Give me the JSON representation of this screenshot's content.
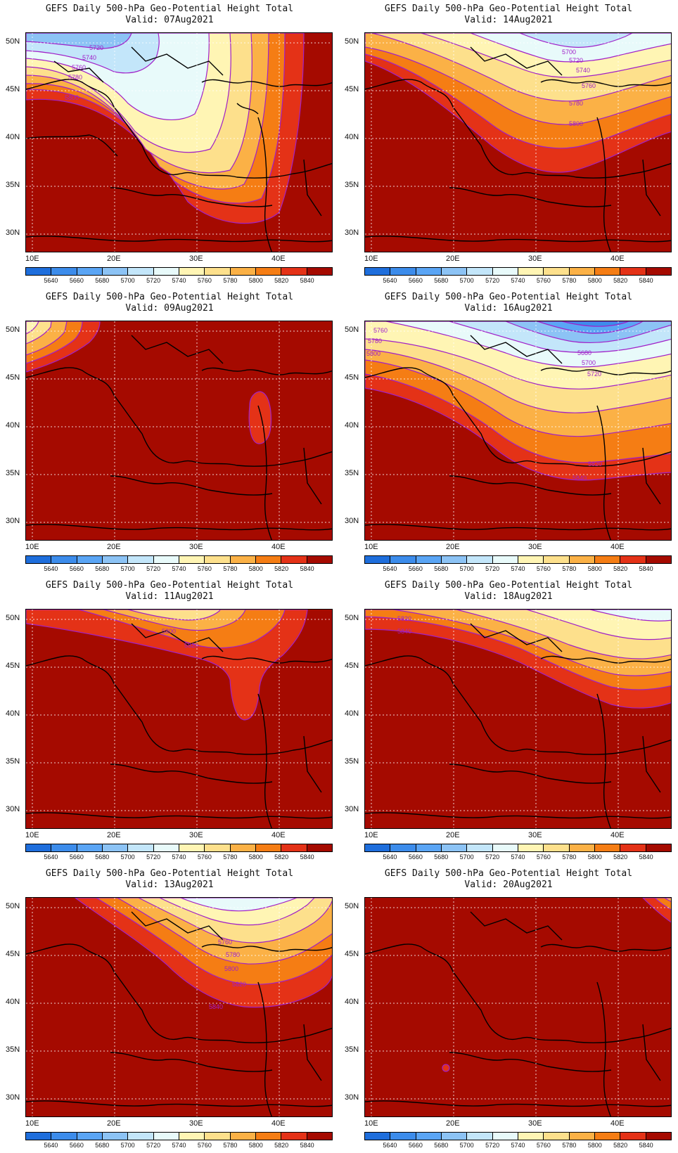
{
  "figure_title": "GEFS Daily 500-hPa Geo-Potential Height Total",
  "legend": {
    "levels": [
      "5640",
      "5660",
      "5680",
      "5700",
      "5720",
      "5740",
      "5760",
      "5780",
      "5800",
      "5820",
      "5840"
    ],
    "colors": [
      "#1e6edc",
      "#3c8ceb",
      "#5aa5f5",
      "#8cc3f5",
      "#c3e6fa",
      "#e8fafa",
      "#fff5b4",
      "#fde08c",
      "#fbb146",
      "#f57d14",
      "#e43217",
      "#a50a00"
    ]
  },
  "axes": {
    "lat": [
      "50N",
      "45N",
      "40N",
      "35N",
      "30N"
    ],
    "lon": [
      "10E",
      "20E",
      "30E",
      "40E"
    ]
  },
  "contour_color": "#a020c8",
  "panels": [
    {
      "subtitle": "Valid: 07Aug2021",
      "labels": [
        "5720",
        "5740",
        "5760",
        "5780",
        "5800"
      ]
    },
    {
      "subtitle": "Valid: 14Aug2021",
      "labels": [
        "5700",
        "5720",
        "5740",
        "5760",
        "5780",
        "5800"
      ]
    },
    {
      "subtitle": "Valid: 09Aug2021",
      "labels": []
    },
    {
      "subtitle": "Valid: 16Aug2021",
      "labels": [
        "5760",
        "5780",
        "5800",
        "5680",
        "5700",
        "5720",
        "5820",
        "5840"
      ]
    },
    {
      "subtitle": "Valid: 11Aug2021",
      "labels": [
        "5800",
        "5820"
      ]
    },
    {
      "subtitle": "Valid: 18Aug2021",
      "labels": [
        "5820",
        "5840"
      ]
    },
    {
      "subtitle": "Valid: 13Aug2021",
      "labels": [
        "5760",
        "5780",
        "5800",
        "5820",
        "5840"
      ]
    },
    {
      "subtitle": "Valid: 20Aug2021",
      "labels": []
    }
  ]
}
